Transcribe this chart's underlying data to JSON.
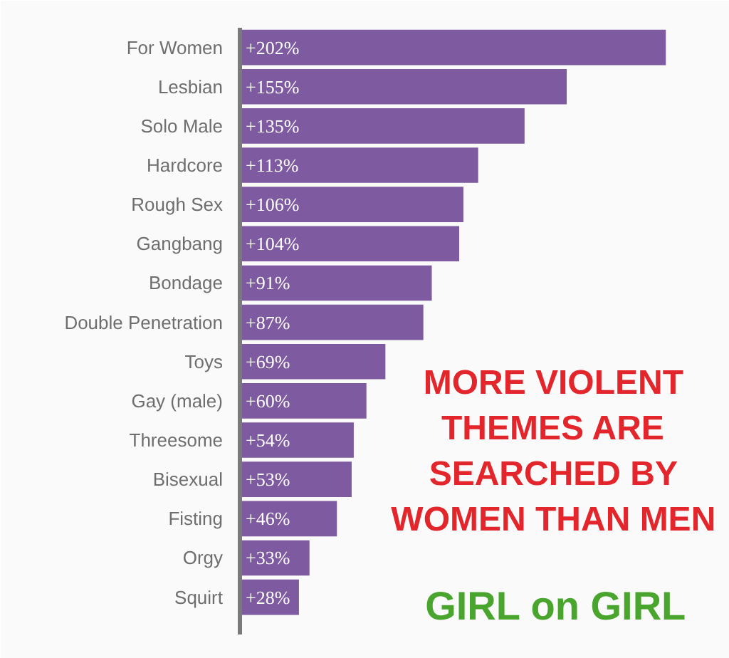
{
  "chart_data": {
    "type": "bar",
    "orientation": "horizontal",
    "color": "#7e5aa0",
    "grid": false,
    "tick_labels": "y",
    "categories": [
      "For Women",
      "Lesbian",
      "Solo Male",
      "Hardcore",
      "Rough Sex",
      "Gangbang",
      "Bondage",
      "Double Penetration",
      "Toys",
      "Gay (male)",
      "Threesome",
      "Bisexual",
      "Fisting",
      "Orgy",
      "Squirt"
    ],
    "values": [
      202,
      155,
      135,
      113,
      106,
      104,
      91,
      87,
      69,
      60,
      54,
      53,
      46,
      33,
      28
    ],
    "value_labels": [
      "+202%",
      "+155%",
      "+135%",
      "+113%",
      "+106%",
      "+104%",
      "+91%",
      "+87%",
      "+69%",
      "+60%",
      "+54%",
      "+53%",
      "+46%",
      "+33%",
      "+28%"
    ],
    "annotations": [
      "MORE VIOLENT THEMES ARE SEARCHED BY WOMEN THAN MEN",
      "GIRL on GIRL"
    ]
  }
}
